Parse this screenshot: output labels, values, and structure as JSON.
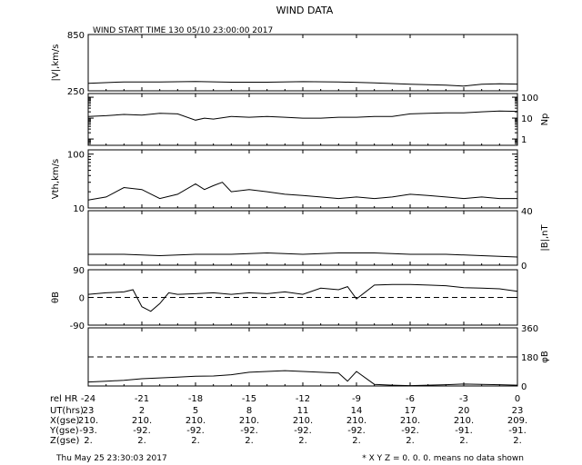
{
  "title": "WIND DATA",
  "subtitle": "WIND START TIME 130 05/10 23:00:00 2017",
  "footer": {
    "timestamp": "Thu May 25 23:30:03 2017",
    "note": "* X Y Z = 0. 0. 0. means no data shown"
  },
  "chart_data": {
    "type": "line",
    "x_label": "rel HR",
    "x_ticks": [
      -24,
      -21,
      -18,
      -15,
      -12,
      -9,
      -6,
      -3,
      0
    ],
    "xlim": [
      -24,
      0
    ],
    "panels": [
      {
        "key": "v",
        "ylabel": "|V|,km/s",
        "ylabel_side": "left",
        "scale": "linear",
        "ylim": [
          250,
          850
        ],
        "tick_labels": [
          "850",
          "250"
        ],
        "ticks": [
          850,
          250
        ],
        "series_x": [
          -24,
          -22,
          -20,
          -18,
          -16,
          -14,
          -12,
          -10,
          -8,
          -6,
          -4,
          -3,
          -2,
          -1,
          0
        ],
        "series_y": [
          330,
          345,
          345,
          350,
          342,
          342,
          348,
          345,
          335,
          320,
          310,
          300,
          320,
          325,
          322
        ]
      },
      {
        "key": "np",
        "ylabel": "Np",
        "ylabel_side": "right",
        "scale": "log",
        "ylim": [
          0.5,
          150
        ],
        "tick_labels": [
          "100",
          "10",
          "1"
        ],
        "ticks": [
          100,
          10,
          1
        ],
        "series_x": [
          -24,
          -23,
          -22,
          -21,
          -20,
          -19,
          -18,
          -17.5,
          -17,
          -16,
          -15,
          -14,
          -13,
          -12,
          -11,
          -10,
          -9,
          -8,
          -7,
          -6,
          -5,
          -4,
          -3,
          -2,
          -1,
          0
        ],
        "series_y": [
          12,
          13,
          15,
          14,
          17,
          16,
          8,
          10,
          9,
          12,
          11,
          12,
          11,
          10,
          10,
          11,
          11,
          12,
          12,
          16,
          17,
          18,
          18,
          20,
          22,
          21
        ]
      },
      {
        "key": "vth",
        "ylabel": "Vth,km/s",
        "ylabel_side": "left",
        "scale": "log",
        "ylim": [
          10,
          120
        ],
        "tick_labels": [
          "100",
          "10"
        ],
        "ticks": [
          100,
          10
        ],
        "series_x": [
          -24,
          -23,
          -22,
          -21,
          -20,
          -19,
          -18,
          -17.5,
          -17,
          -16.5,
          -16,
          -15,
          -14,
          -13,
          -12,
          -11,
          -10,
          -9,
          -8,
          -7,
          -6,
          -5,
          -4,
          -3,
          -2,
          -1,
          0
        ],
        "series_y": [
          14,
          16,
          24,
          22,
          15,
          18,
          28,
          22,
          26,
          30,
          20,
          22,
          20,
          18,
          17,
          16,
          15,
          16,
          15,
          16,
          18,
          17,
          16,
          15,
          16,
          15,
          15
        ]
      },
      {
        "key": "b",
        "ylabel": "|B|,nT",
        "ylabel_side": "right",
        "scale": "linear",
        "ylim": [
          0,
          40
        ],
        "tick_labels": [
          "40",
          "0"
        ],
        "ticks": [
          40,
          0
        ],
        "series_x": [
          -24,
          -22,
          -20,
          -18,
          -16,
          -14,
          -12,
          -10,
          -8,
          -6,
          -4,
          -2,
          0
        ],
        "series_y": [
          8,
          8,
          7,
          8,
          8,
          9,
          8,
          9,
          9,
          8,
          8,
          7,
          6
        ]
      },
      {
        "key": "thb",
        "ylabel": "θB",
        "ylabel_side": "left",
        "scale": "linear",
        "ylim": [
          -90,
          90
        ],
        "tick_labels": [
          "90",
          "0",
          "-90"
        ],
        "ticks": [
          90,
          0,
          -90
        ],
        "dashed_at": 0,
        "series_x": [
          -24,
          -23,
          -22,
          -21.5,
          -21,
          -20.5,
          -20,
          -19.5,
          -19,
          -18,
          -17,
          -16,
          -15,
          -14,
          -13,
          -12,
          -11,
          -10,
          -9.5,
          -9,
          -8,
          -7,
          -6,
          -5,
          -4,
          -3,
          -2,
          -1,
          0
        ],
        "series_y": [
          10,
          15,
          18,
          25,
          -30,
          -45,
          -20,
          15,
          10,
          12,
          15,
          10,
          15,
          12,
          18,
          10,
          30,
          25,
          35,
          -5,
          40,
          42,
          42,
          40,
          38,
          32,
          30,
          28,
          20
        ]
      },
      {
        "key": "phb",
        "ylabel": "φB",
        "ylabel_side": "right",
        "scale": "linear",
        "ylim": [
          0,
          360
        ],
        "tick_labels": [
          "360",
          "180",
          "0"
        ],
        "ticks": [
          360,
          180,
          0
        ],
        "dashed_at": 180,
        "series_x": [
          -24,
          -23,
          -22,
          -21,
          -20,
          -19,
          -18,
          -17,
          -16,
          -15,
          -14,
          -13,
          -12,
          -11,
          -10,
          -9.5,
          -9,
          -8,
          -7,
          -6,
          -5,
          -4,
          -3,
          -2,
          -1,
          0
        ],
        "series_y": [
          25,
          30,
          35,
          45,
          50,
          55,
          60,
          62,
          70,
          85,
          90,
          95,
          90,
          85,
          80,
          30,
          90,
          10,
          5,
          2,
          5,
          8,
          12,
          10,
          8,
          5
        ]
      }
    ],
    "table": {
      "rows": [
        {
          "label": "UT(hrs)",
          "values": [
            "23",
            "2",
            "5",
            "8",
            "11",
            "14",
            "17",
            "20",
            "23"
          ]
        },
        {
          "label": "X(gse)",
          "values": [
            "210.",
            "210.",
            "210.",
            "210.",
            "210.",
            "210.",
            "210.",
            "210.",
            "209."
          ]
        },
        {
          "label": "Y(gse)",
          "values": [
            "-93.",
            "-92.",
            "-92.",
            "-92.",
            "-92.",
            "-92.",
            "-92.",
            "-91.",
            "-91."
          ]
        },
        {
          "label": "Z(gse)",
          "values": [
            "2.",
            "2.",
            "2.",
            "2.",
            "2.",
            "2.",
            "2.",
            "2.",
            "2."
          ]
        }
      ]
    }
  }
}
